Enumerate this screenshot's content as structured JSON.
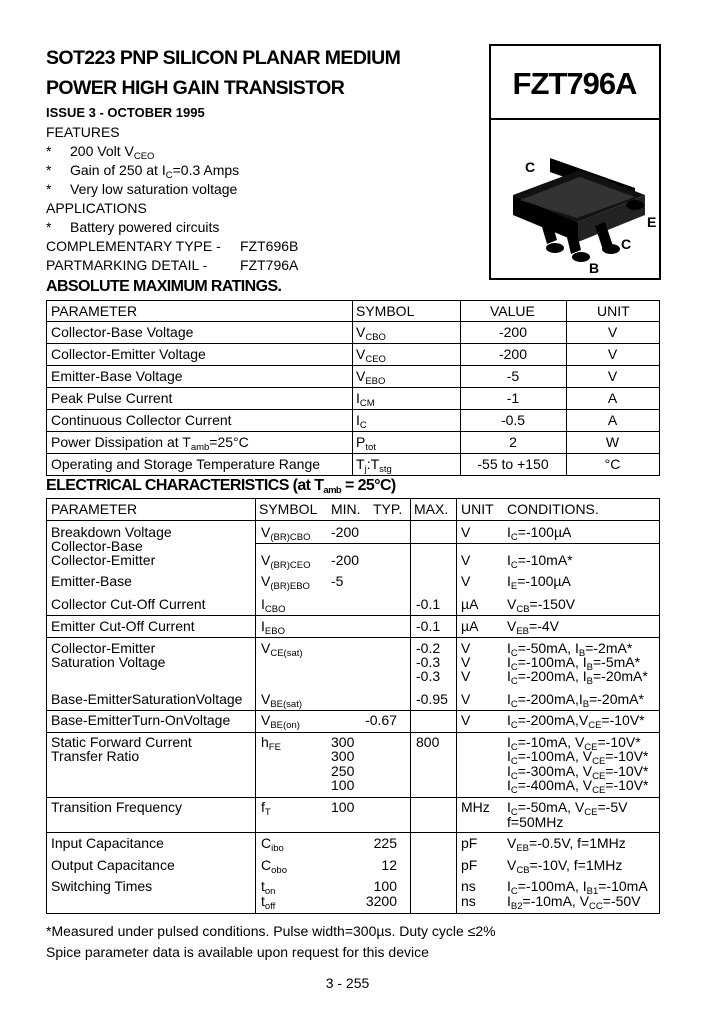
{
  "header": {
    "title_line1": "SOT223 PNP SILICON PLANAR MEDIUM",
    "title_line2": "POWER HIGH GAIN TRANSISTOR",
    "issue": "ISSUE 3 - OCTOBER 1995",
    "part_number": "FZT796A"
  },
  "package_pins": {
    "c_top": "C",
    "e": "E",
    "c": "C",
    "b": "B"
  },
  "features": {
    "heading": "FEATURES",
    "bullet": "*",
    "items": [
      "200 Volt V_{CEO}",
      "Gain of 250 at I_{C}=0.3 Amps",
      "Very low saturation voltage"
    ]
  },
  "applications": {
    "heading": "APPLICATIONS",
    "items": [
      "Battery powered circuits"
    ]
  },
  "complementary": {
    "label": "COMPLEMENTARY TYPE -",
    "value": "FZT696B"
  },
  "partmarking": {
    "label": "PARTMARKING DETAIL -",
    "value": "FZT796A"
  },
  "abs_max": {
    "heading": "ABSOLUTE MAXIMUM RATINGS.",
    "columns": [
      "PARAMETER",
      "SYMBOL",
      "VALUE",
      "UNIT"
    ],
    "rows": [
      {
        "param": "Collector-Base Voltage",
        "symbol": "V_{CBO}",
        "value": "-200",
        "unit": "V"
      },
      {
        "param": "Collector-Emitter Voltage",
        "symbol": "V_{CEO}",
        "value": "-200",
        "unit": "V"
      },
      {
        "param": "Emitter-Base Voltage",
        "symbol": "V_{EBO}",
        "value": "-5",
        "unit": "V"
      },
      {
        "param": "Peak Pulse Current",
        "symbol": "I_{CM}",
        "value": "-1",
        "unit": "A"
      },
      {
        "param": "Continuous Collector Current",
        "symbol": "I_{C}",
        "value": "-0.5",
        "unit": "A"
      },
      {
        "param": "Power Dissipation at T_{amb}=25°C",
        "symbol": "P_{tot}",
        "value": "2",
        "unit": "W"
      },
      {
        "param": "Operating and Storage Temperature Range",
        "symbol": "T_{j}:T_{stg}",
        "value": "-55 to +150",
        "unit": "°C"
      }
    ]
  },
  "electrical": {
    "heading": "ELECTRICAL CHARACTERISTICS (at T_{amb} = 25°C)",
    "columns": [
      "PARAMETER",
      "SYMBOL",
      "MIN.",
      "TYP.",
      "MAX.",
      "UNIT",
      "CONDITIONS."
    ],
    "rows": [
      {
        "param": "Breakdown Voltage",
        "symbol": "V_{(BR)CBO}",
        "min": "-200",
        "typ": "",
        "max": "",
        "unit": "V",
        "cond": "I_{C}=-100µA"
      },
      {
        "param": "Collector-Base",
        "symbol": "",
        "min": "",
        "typ": "",
        "max": "",
        "unit": "",
        "cond": ""
      },
      {
        "param": "Collector-Emitter",
        "symbol": "V_{(BR)CEO}",
        "min": "-200",
        "typ": "",
        "max": "",
        "unit": "V",
        "cond": "I_{C}=-10mA*"
      },
      {
        "param": "Emitter-Base",
        "symbol": "V_{(BR)EBO}",
        "min": "-5",
        "typ": "",
        "max": "",
        "unit": "V",
        "cond": "I_{E}=-100µA"
      },
      {
        "param": "Collector Cut-Off Current",
        "symbol": "I_{CBO}",
        "min": "",
        "typ": "",
        "max": "-0.1",
        "unit": "µA",
        "cond": "V_{CB}=-150V"
      },
      {
        "param": "Emitter Cut-Off Current",
        "symbol": "I_{EBO}",
        "min": "",
        "typ": "",
        "max": "-0.1",
        "unit": "µA",
        "cond": "V_{EB}=-4V"
      },
      {
        "param": "Collector-Emitter",
        "symbol": "V_{CE(sat)}",
        "min": "",
        "typ": "",
        "max": "-0.2",
        "unit": "V",
        "cond": "I_{C}=-50mA, I_{B}=-2mA*"
      },
      {
        "param": "Saturation Voltage",
        "symbol": "",
        "min": "",
        "typ": "",
        "max": "-0.3",
        "unit": "V",
        "cond": "I_{C}=-100mA, I_{B}=-5mA*"
      },
      {
        "param": "",
        "symbol": "",
        "min": "",
        "typ": "",
        "max": "-0.3",
        "unit": "V",
        "cond": "I_{C}=-200mA, I_{B}=-20mA*"
      },
      {
        "param": "Base-EmitterSaturationVoltage",
        "symbol": "V_{BE(sat)}",
        "min": "",
        "typ": "",
        "max": "-0.95",
        "unit": "V",
        "cond": "I_{C}=-200mA,I_{B}=-20mA*"
      },
      {
        "param": "Base-EmitterTurn-OnVoltage",
        "symbol": "V_{BE(on)}",
        "min": "",
        "typ": "-0.67",
        "max": "",
        "unit": "V",
        "cond": "I_{C}=-200mA,V_{CE}=-10V*"
      },
      {
        "param": "Static Forward Current",
        "symbol": "h_{FE}",
        "min": "300",
        "typ": "",
        "max": "800",
        "unit": "",
        "cond": "I_{C}=-10mA, V_{CE}=-10V*"
      },
      {
        "param": "Transfer Ratio",
        "symbol": "",
        "min": "300",
        "typ": "",
        "max": "",
        "unit": "",
        "cond": "I_{C}=-100mA, V_{CE}=-10V*"
      },
      {
        "param": "",
        "symbol": "",
        "min": "250",
        "typ": "",
        "max": "",
        "unit": "",
        "cond": "I_{C}=-300mA, V_{CE}=-10V*"
      },
      {
        "param": "",
        "symbol": "",
        "min": "100",
        "typ": "",
        "max": "",
        "unit": "",
        "cond": "I_{C}=-400mA, V_{CE}=-10V*"
      },
      {
        "param": "Transition Frequency",
        "symbol": "f_{T}",
        "min": "100",
        "typ": "",
        "max": "",
        "unit": "MHz",
        "cond": "I_{C}=-50mA, V_{CE}=-5V"
      },
      {
        "param": "",
        "symbol": "",
        "min": "",
        "typ": "",
        "max": "",
        "unit": "",
        "cond": "f=50MHz"
      },
      {
        "param": "Input Capacitance",
        "symbol": "C_{ibo}",
        "min": "",
        "typ": "225",
        "max": "",
        "unit": "pF",
        "cond": "V_{EB}=-0.5V, f=1MHz"
      },
      {
        "param": "Output Capacitance",
        "symbol": "C_{obo}",
        "min": "",
        "typ": "12",
        "max": "",
        "unit": "pF",
        "cond": "V_{CB}=-10V,  f=1MHz"
      },
      {
        "param": "Switching Times",
        "symbol": "t_{on}",
        "min": "",
        "typ": "100",
        "max": "",
        "unit": "ns",
        "cond": "I_{C}=-100mA, I_{B1}=-10mA"
      },
      {
        "param": "",
        "symbol": "t_{off}",
        "min": "",
        "typ": "3200",
        "max": "",
        "unit": "ns",
        "cond": "I_{B2}=-10mA, V_{CC}=-50V"
      }
    ]
  },
  "footnotes": {
    "pulsed": "*Measured under pulsed conditions. Pulse width=300µs. Duty cycle ≤2%",
    "spice": "Spice parameter data is available upon request for this device"
  },
  "page_number": "3 - 255"
}
